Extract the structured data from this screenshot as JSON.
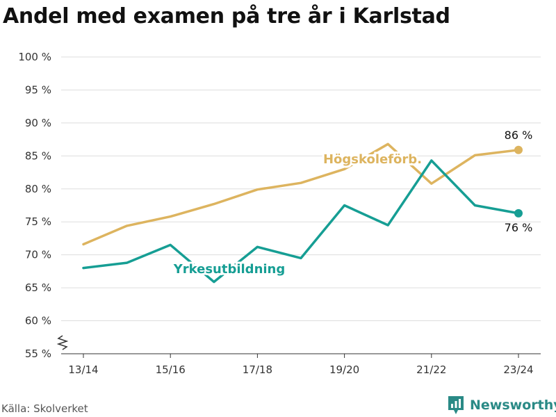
{
  "title": "Andel med examen på tre år i Karlstad",
  "source": "Källa: Skolverket",
  "brand": {
    "name": "Newsworthy",
    "icon": "newsworthy-logo-icon"
  },
  "colors": {
    "hogskole": "#ddb45f",
    "yrkes": "#169e94",
    "grid": "#dddddd",
    "axis": "#333333"
  },
  "chart_data": {
    "type": "line",
    "title": "Andel med examen på tre år i Karlstad",
    "x": [
      "13/14",
      "14/15",
      "15/16",
      "16/17",
      "17/18",
      "18/19",
      "19/20",
      "20/21",
      "21/22",
      "22/23",
      "23/24"
    ],
    "xticks": [
      "13/14",
      "15/16",
      "17/18",
      "19/20",
      "21/22",
      "23/24"
    ],
    "ylim": [
      55,
      100
    ],
    "yticks": [
      "55 %",
      "60 %",
      "65 %",
      "70 %",
      "75 %",
      "80 %",
      "85 %",
      "90 %",
      "95 %",
      "100 %"
    ],
    "grid": true,
    "series": [
      {
        "name": "Högskoleförb.",
        "color": "#ddb45f",
        "values": [
          71.6,
          74.4,
          75.8,
          77.7,
          79.9,
          80.9,
          83.0,
          86.8,
          80.8,
          85.1,
          85.9
        ],
        "end_label": "86 %"
      },
      {
        "name": "Yrkesutbildning",
        "color": "#169e94",
        "values": [
          68.0,
          68.8,
          71.5,
          65.9,
          71.2,
          69.5,
          77.5,
          74.5,
          84.3,
          77.5,
          76.3
        ],
        "end_label": "76 %"
      }
    ]
  }
}
